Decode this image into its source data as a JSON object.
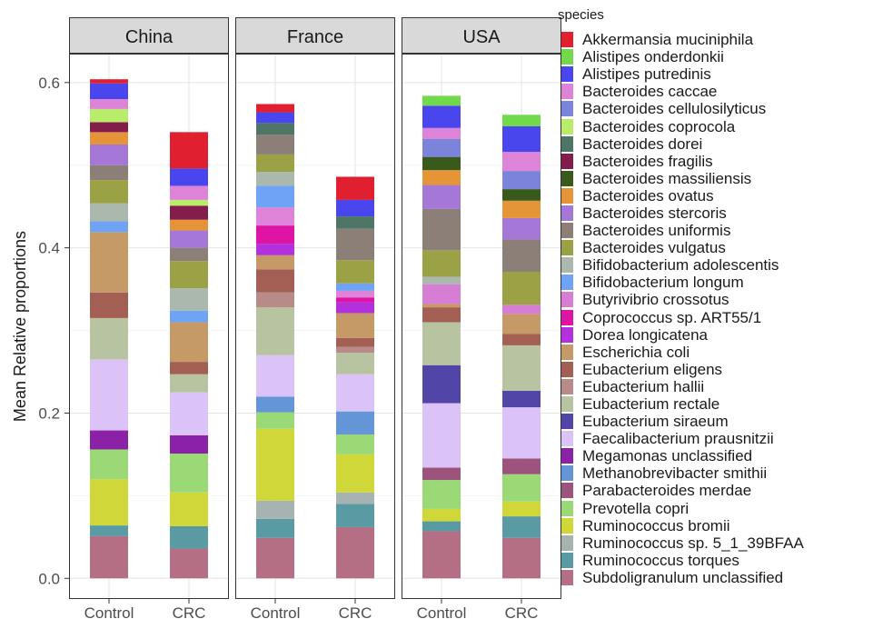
{
  "chart_data": {
    "type": "bar",
    "stacked": true,
    "ylabel": "Mean Relative proportions",
    "xlabel": "",
    "ylim": [
      -0.025,
      0.635
    ],
    "yticks": [
      "0.0",
      "0.2",
      "0.4",
      "0.6"
    ],
    "ytick_values": [
      0,
      0.2,
      0.4,
      0.6
    ],
    "grid": true,
    "legend_title": "species",
    "legend_position": "right",
    "categories": [
      "Control",
      "CRC"
    ],
    "species": [
      {
        "name": "Akkermansia muciniphila",
        "color": "#e02030"
      },
      {
        "name": "Alistipes onderdonkii",
        "color": "#73d94c"
      },
      {
        "name": "Alistipes putredinis",
        "color": "#4a46ee"
      },
      {
        "name": "Bacteroides caccae",
        "color": "#dd84d9"
      },
      {
        "name": "Bacteroides cellulosilyticus",
        "color": "#7b83da"
      },
      {
        "name": "Bacteroides coprocola",
        "color": "#b9ec6a"
      },
      {
        "name": "Bacteroides dorei",
        "color": "#4e7565"
      },
      {
        "name": "Bacteroides fragilis",
        "color": "#821d4c"
      },
      {
        "name": "Bacteroides massiliensis",
        "color": "#3a5a1c"
      },
      {
        "name": "Bacteroides ovatus",
        "color": "#e59438"
      },
      {
        "name": "Bacteroides stercoris",
        "color": "#a577d6"
      },
      {
        "name": "Bacteroides uniformis",
        "color": "#8c7f78"
      },
      {
        "name": "Bacteroides vulgatus",
        "color": "#9ba245"
      },
      {
        "name": "Bifidobacterium adolescentis",
        "color": "#aab8ae"
      },
      {
        "name": "Bifidobacterium longum",
        "color": "#6ea3f6"
      },
      {
        "name": "Butyrivibrio crossotus",
        "color": "#d57ed3"
      },
      {
        "name": "Coprococcus sp. ART55/1",
        "color": "#de15a4"
      },
      {
        "name": "Dorea longicatena",
        "color": "#b331dc"
      },
      {
        "name": "Escherichia coli",
        "color": "#c69a67"
      },
      {
        "name": "Eubacterium eligens",
        "color": "#a45f55"
      },
      {
        "name": "Eubacterium hallii",
        "color": "#b88b88"
      },
      {
        "name": "Eubacterium rectale",
        "color": "#b8c3a2"
      },
      {
        "name": "Eubacterium siraeum",
        "color": "#5146a8"
      },
      {
        "name": "Faecalibacterium prausnitzii",
        "color": "#dcc3f7"
      },
      {
        "name": "Megamonas unclassified",
        "color": "#8a21a6"
      },
      {
        "name": "Methanobrevibacter smithii",
        "color": "#6495d7"
      },
      {
        "name": "Parabacteroides merdae",
        "color": "#9d547c"
      },
      {
        "name": "Prevotella copri",
        "color": "#9bd977"
      },
      {
        "name": "Ruminococcus bromii",
        "color": "#d0d738"
      },
      {
        "name": "Ruminococcus sp. 5_1_39BFAA",
        "color": "#a6b3b1"
      },
      {
        "name": "Ruminococcus torques",
        "color": "#5a9aa3"
      },
      {
        "name": "Subdoligranulum unclassified",
        "color": "#b46f84"
      }
    ],
    "panels": [
      {
        "title": "China",
        "bars": [
          {
            "label": "Control",
            "segments": [
              {
                "species": "Akkermansia muciniphila",
                "value": 0.005
              },
              {
                "species": "Alistipes putredinis",
                "value": 0.019
              },
              {
                "species": "Bacteroides caccae",
                "value": 0.012
              },
              {
                "species": "Bacteroides coprocola",
                "value": 0.016
              },
              {
                "species": "Bacteroides fragilis",
                "value": 0.012
              },
              {
                "species": "Bacteroides ovatus",
                "value": 0.015
              },
              {
                "species": "Bacteroides stercoris",
                "value": 0.025
              },
              {
                "species": "Bacteroides uniformis",
                "value": 0.018
              },
              {
                "species": "Bacteroides vulgatus",
                "value": 0.028
              },
              {
                "species": "Bifidobacterium adolescentis",
                "value": 0.022
              },
              {
                "species": "Bifidobacterium longum",
                "value": 0.013
              },
              {
                "species": "Escherichia coli",
                "value": 0.073
              },
              {
                "species": "Eubacterium eligens",
                "value": 0.031
              },
              {
                "species": "Eubacterium rectale",
                "value": 0.05
              },
              {
                "species": "Faecalibacterium prausnitzii",
                "value": 0.086
              },
              {
                "species": "Megamonas unclassified",
                "value": 0.023
              },
              {
                "species": "Prevotella copri",
                "value": 0.036
              },
              {
                "species": "Ruminococcus bromii",
                "value": 0.056
              },
              {
                "species": "Ruminococcus torques",
                "value": 0.013
              },
              {
                "species": "Subdoligranulum unclassified",
                "value": 0.051
              }
            ]
          },
          {
            "label": "CRC",
            "segments": [
              {
                "species": "Akkermansia muciniphila",
                "value": 0.044
              },
              {
                "species": "Alistipes putredinis",
                "value": 0.021
              },
              {
                "species": "Bacteroides caccae",
                "value": 0.017
              },
              {
                "species": "Bacteroides coprocola",
                "value": 0.007
              },
              {
                "species": "Bacteroides fragilis",
                "value": 0.017
              },
              {
                "species": "Bacteroides ovatus",
                "value": 0.013
              },
              {
                "species": "Bacteroides stercoris",
                "value": 0.021
              },
              {
                "species": "Bacteroides uniformis",
                "value": 0.016
              },
              {
                "species": "Bacteroides vulgatus",
                "value": 0.033
              },
              {
                "species": "Bifidobacterium adolescentis",
                "value": 0.027
              },
              {
                "species": "Bifidobacterium longum",
                "value": 0.014
              },
              {
                "species": "Escherichia coli",
                "value": 0.048
              },
              {
                "species": "Eubacterium eligens",
                "value": 0.015
              },
              {
                "species": "Eubacterium rectale",
                "value": 0.022
              },
              {
                "species": "Faecalibacterium prausnitzii",
                "value": 0.052
              },
              {
                "species": "Megamonas unclassified",
                "value": 0.022
              },
              {
                "species": "Prevotella copri",
                "value": 0.047
              },
              {
                "species": "Ruminococcus bromii",
                "value": 0.041
              },
              {
                "species": "Ruminococcus torques",
                "value": 0.027
              },
              {
                "species": "Subdoligranulum unclassified",
                "value": 0.036
              }
            ]
          }
        ]
      },
      {
        "title": "France",
        "bars": [
          {
            "label": "Control",
            "segments": [
              {
                "species": "Akkermansia muciniphila",
                "value": 0.01
              },
              {
                "species": "Alistipes putredinis",
                "value": 0.013
              },
              {
                "species": "Bacteroides dorei",
                "value": 0.014
              },
              {
                "species": "Bacteroides uniformis",
                "value": 0.024
              },
              {
                "species": "Bacteroides vulgatus",
                "value": 0.021
              },
              {
                "species": "Bifidobacterium adolescentis",
                "value": 0.017
              },
              {
                "species": "Bifidobacterium longum",
                "value": 0.026
              },
              {
                "species": "Bacteroides caccae",
                "value": 0.022
              },
              {
                "species": "Coprococcus sp. ART55/1",
                "value": 0.022
              },
              {
                "species": "Dorea longicatena",
                "value": 0.014
              },
              {
                "species": "Escherichia coli",
                "value": 0.017
              },
              {
                "species": "Eubacterium eligens",
                "value": 0.028
              },
              {
                "species": "Eubacterium hallii",
                "value": 0.018
              },
              {
                "species": "Eubacterium rectale",
                "value": 0.058
              },
              {
                "species": "Faecalibacterium prausnitzii",
                "value": 0.05
              },
              {
                "species": "Methanobrevibacter smithii",
                "value": 0.019
              },
              {
                "species": "Prevotella copri",
                "value": 0.02
              },
              {
                "species": "Ruminococcus bromii",
                "value": 0.087
              },
              {
                "species": "Ruminococcus sp. 5_1_39BFAA",
                "value": 0.022
              },
              {
                "species": "Ruminococcus torques",
                "value": 0.023
              },
              {
                "species": "Subdoligranulum unclassified",
                "value": 0.049
              }
            ]
          },
          {
            "label": "CRC",
            "segments": [
              {
                "species": "Akkermansia muciniphila",
                "value": 0.028
              },
              {
                "species": "Alistipes putredinis",
                "value": 0.02
              },
              {
                "species": "Bacteroides dorei",
                "value": 0.015
              },
              {
                "species": "Bacteroides uniformis",
                "value": 0.038
              },
              {
                "species": "Bacteroides vulgatus",
                "value": 0.028
              },
              {
                "species": "Bifidobacterium longum",
                "value": 0.009
              },
              {
                "species": "Bacteroides caccae",
                "value": 0.008
              },
              {
                "species": "Coprococcus sp. ART55/1",
                "value": 0.006
              },
              {
                "species": "Dorea longicatena",
                "value": 0.013
              },
              {
                "species": "Escherichia coli",
                "value": 0.03
              },
              {
                "species": "Eubacterium eligens",
                "value": 0.011
              },
              {
                "species": "Eubacterium hallii",
                "value": 0.007
              },
              {
                "species": "Eubacterium rectale",
                "value": 0.026
              },
              {
                "species": "Faecalibacterium prausnitzii",
                "value": 0.045
              },
              {
                "species": "Methanobrevibacter smithii",
                "value": 0.028
              },
              {
                "species": "Prevotella copri",
                "value": 0.024
              },
              {
                "species": "Ruminococcus bromii",
                "value": 0.046
              },
              {
                "species": "Ruminococcus sp. 5_1_39BFAA",
                "value": 0.014
              },
              {
                "species": "Ruminococcus torques",
                "value": 0.028
              },
              {
                "species": "Subdoligranulum unclassified",
                "value": 0.062
              }
            ]
          }
        ]
      },
      {
        "title": "USA",
        "bars": [
          {
            "label": "Control",
            "segments": [
              {
                "species": "Alistipes onderdonkii",
                "value": 0.012
              },
              {
                "species": "Alistipes putredinis",
                "value": 0.027
              },
              {
                "species": "Bacteroides caccae",
                "value": 0.013
              },
              {
                "species": "Bacteroides cellulosilyticus",
                "value": 0.022
              },
              {
                "species": "Bacteroides massiliensis",
                "value": 0.016
              },
              {
                "species": "Bacteroides ovatus",
                "value": 0.018
              },
              {
                "species": "Bacteroides stercoris",
                "value": 0.029
              },
              {
                "species": "Bacteroides uniformis",
                "value": 0.05
              },
              {
                "species": "Bacteroides vulgatus",
                "value": 0.032
              },
              {
                "species": "Bifidobacterium adolescentis",
                "value": 0.009
              },
              {
                "species": "Butyrivibrio crossotus",
                "value": 0.024
              },
              {
                "species": "Escherichia coli",
                "value": 0.004
              },
              {
                "species": "Eubacterium eligens",
                "value": 0.018
              },
              {
                "species": "Eubacterium rectale",
                "value": 0.052
              },
              {
                "species": "Eubacterium siraeum",
                "value": 0.046
              },
              {
                "species": "Faecalibacterium prausnitzii",
                "value": 0.078
              },
              {
                "species": "Parabacteroides merdae",
                "value": 0.015
              },
              {
                "species": "Prevotella copri",
                "value": 0.035
              },
              {
                "species": "Ruminococcus bromii",
                "value": 0.015
              },
              {
                "species": "Ruminococcus torques",
                "value": 0.012
              },
              {
                "species": "Subdoligranulum unclassified",
                "value": 0.057
              }
            ]
          },
          {
            "label": "CRC",
            "segments": [
              {
                "species": "Alistipes onderdonkii",
                "value": 0.014
              },
              {
                "species": "Alistipes putredinis",
                "value": 0.031
              },
              {
                "species": "Bacteroides caccae",
                "value": 0.023
              },
              {
                "species": "Bacteroides cellulosilyticus",
                "value": 0.022
              },
              {
                "species": "Bacteroides massiliensis",
                "value": 0.014
              },
              {
                "species": "Bacteroides ovatus",
                "value": 0.021
              },
              {
                "species": "Bacteroides stercoris",
                "value": 0.026
              },
              {
                "species": "Bacteroides uniformis",
                "value": 0.039
              },
              {
                "species": "Bacteroides vulgatus",
                "value": 0.04
              },
              {
                "species": "Butyrivibrio crossotus",
                "value": 0.011
              },
              {
                "species": "Escherichia coli",
                "value": 0.024
              },
              {
                "species": "Eubacterium eligens",
                "value": 0.014
              },
              {
                "species": "Eubacterium rectale",
                "value": 0.055
              },
              {
                "species": "Eubacterium siraeum",
                "value": 0.02
              },
              {
                "species": "Faecalibacterium prausnitzii",
                "value": 0.062
              },
              {
                "species": "Parabacteroides merdae",
                "value": 0.019
              },
              {
                "species": "Prevotella copri",
                "value": 0.033
              },
              {
                "species": "Ruminococcus bromii",
                "value": 0.018
              },
              {
                "species": "Ruminococcus torques",
                "value": 0.026
              },
              {
                "species": "Subdoligranulum unclassified",
                "value": 0.049
              }
            ]
          }
        ]
      }
    ]
  }
}
